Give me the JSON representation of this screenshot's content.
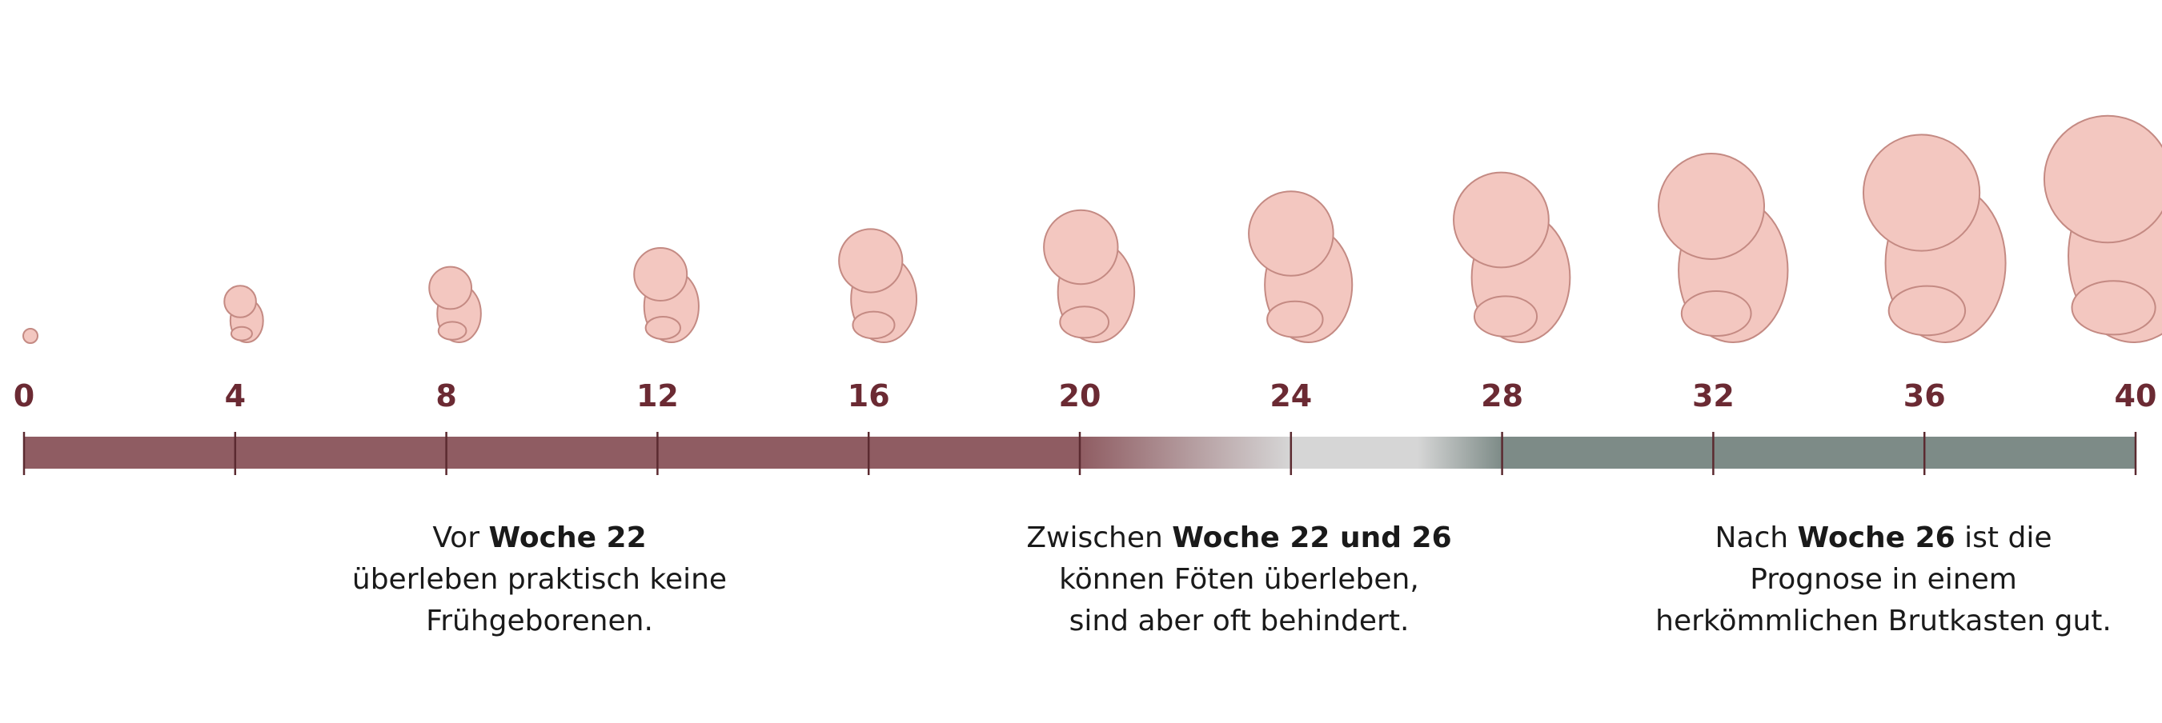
{
  "timeline": {
    "ticks": [
      0,
      4,
      8,
      12,
      16,
      20,
      24,
      28,
      32,
      36,
      40
    ],
    "captions": [
      {
        "lines": [
          [
            {
              "text": "Vor "
            },
            {
              "text": "Woche 22",
              "bold": true
            }
          ],
          [
            {
              "text": "überleben praktisch keine"
            }
          ],
          [
            {
              "text": "Frühgeborenen."
            }
          ]
        ]
      },
      {
        "lines": [
          [
            {
              "text": "Zwischen "
            },
            {
              "text": "Woche 22 und 26",
              "bold": true
            }
          ],
          [
            {
              "text": "können Föten überleben,"
            }
          ],
          [
            {
              "text": "sind aber oft behindert."
            }
          ]
        ]
      },
      {
        "lines": [
          [
            {
              "text": "Nach "
            },
            {
              "text": "Woche 26",
              "bold": true
            },
            {
              "text": " ist die"
            }
          ],
          [
            {
              "text": "Prognose in einem"
            }
          ],
          [
            {
              "text": "herkömmlichen Brutkasten gut."
            }
          ]
        ]
      }
    ]
  }
}
